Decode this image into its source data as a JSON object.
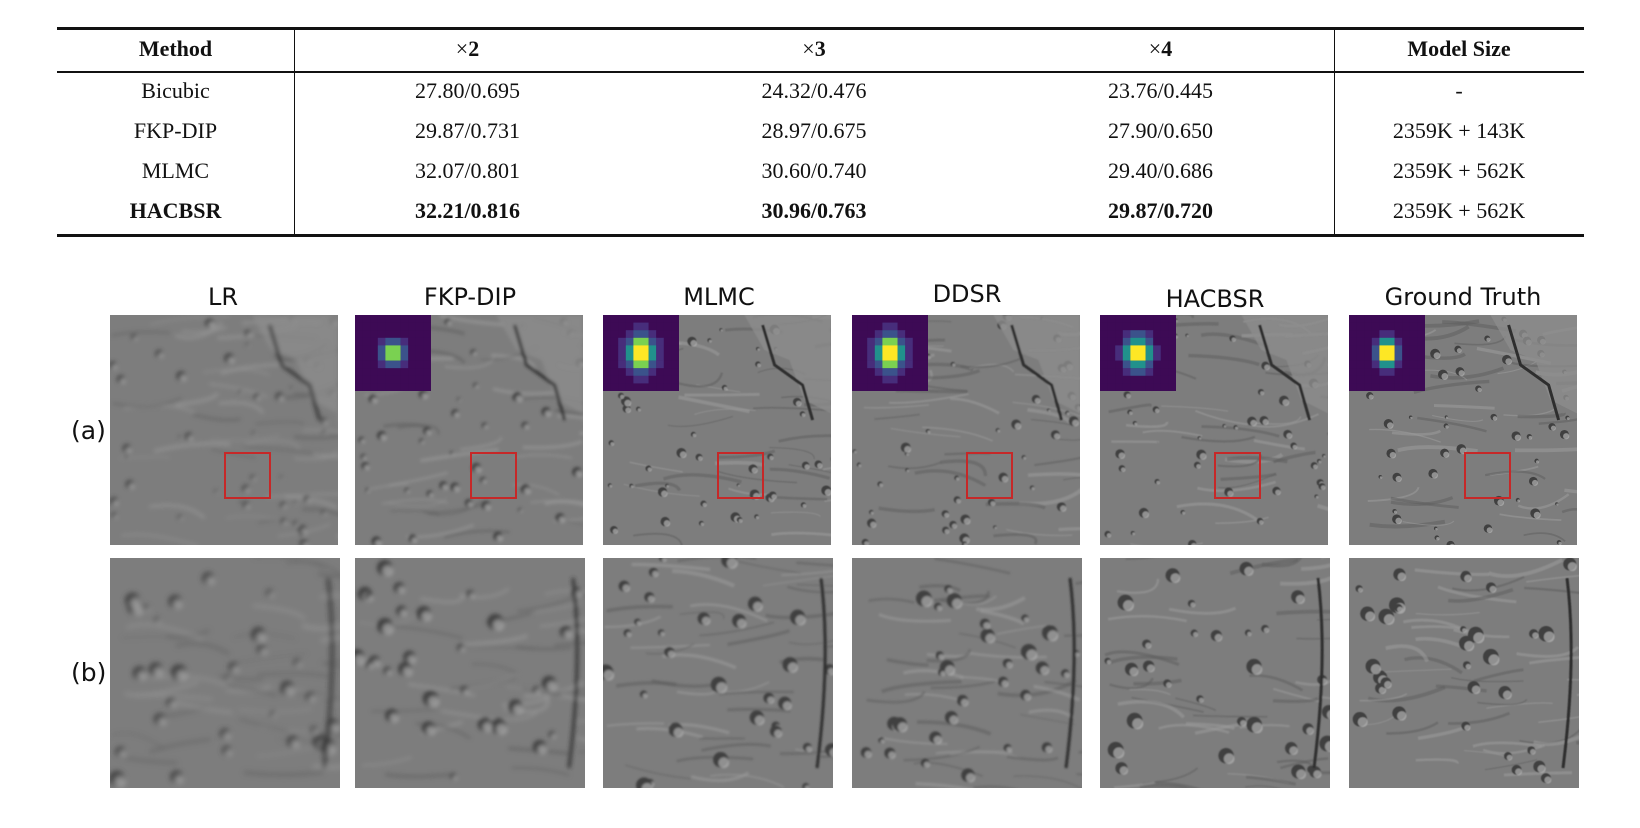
{
  "table": {
    "headers": {
      "method": "Method",
      "x2": "2",
      "x3": "3",
      "x4": "4",
      "model_size": "Model Size",
      "times_symbol": "×"
    },
    "rows": [
      {
        "method": "Bicubic",
        "x2": "27.80/0.695",
        "x3": "24.32/0.476",
        "x4": "23.76/0.445",
        "size": "-"
      },
      {
        "method": "FKP-DIP",
        "x2": "29.87/0.731",
        "x3": "28.97/0.675",
        "x4": "27.90/0.650",
        "size": "2359K + 143K"
      },
      {
        "method": "MLMC",
        "x2": "32.07/0.801",
        "x3": "30.60/0.740",
        "x4": "29.40/0.686",
        "size": "2359K + 562K"
      },
      {
        "method": "HACBSR",
        "x2": "32.21/0.816",
        "x3": "30.96/0.763",
        "x4": "29.87/0.720",
        "size": "2359K + 562K"
      }
    ]
  },
  "figure": {
    "columns": [
      "LR",
      "FKP-DIP",
      "MLMC",
      "DDSR",
      "HACBSR",
      "Ground Truth"
    ],
    "row_labels": [
      "(a)",
      "(b)"
    ],
    "colors": {
      "roi_box": "#c62828",
      "kernel_bg": "#3d0a55",
      "kernel_mid": "#21918c",
      "kernel_peak": "#fde725",
      "terrain": "#7d7d7d"
    }
  }
}
